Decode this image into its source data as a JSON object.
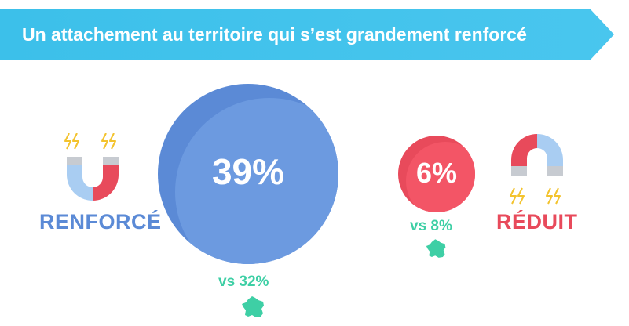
{
  "header": {
    "title": "Un attachement au territoire qui s’est grandement renforcé",
    "color": "#3cc1ea"
  },
  "renforce": {
    "label": "RENFORCÉ",
    "value": "39%",
    "comparison": "vs 32%",
    "color": "#5b8ad6",
    "icon": "magnet-icon"
  },
  "reduit": {
    "label": "RÉDUIT",
    "value": "6%",
    "comparison": "vs 8%",
    "color": "#e84a5b",
    "icon": "magnet-icon"
  },
  "comparison_icon": "france-map-icon",
  "comparison_color": "#3ecfa5"
}
